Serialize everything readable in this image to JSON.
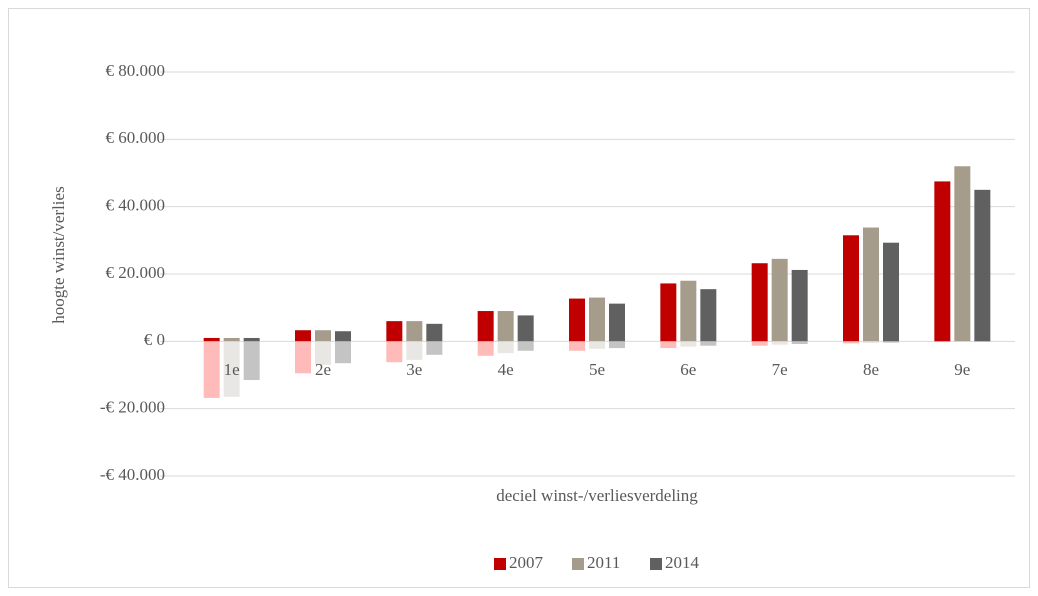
{
  "chart_data": {
    "type": "bar",
    "y_axis_label": "hoogte winst/verlies",
    "x_axis_label": "deciel winst-/verliesverdeling",
    "categories": [
      "1e",
      "2e",
      "3e",
      "4e",
      "5e",
      "6e",
      "7e",
      "8e",
      "9e"
    ],
    "series": [
      {
        "name": "2007",
        "color": "#c00000",
        "loss_color": "#ffbaba",
        "values": [
          1000,
          3300,
          6000,
          9000,
          12700,
          17200,
          23200,
          31500,
          47500
        ],
        "loss_values": [
          -16800,
          -9500,
          -6200,
          -4300,
          -2800,
          -2000,
          -1300,
          -600,
          -200
        ]
      },
      {
        "name": "2011",
        "color": "#a59c8c",
        "loss_color": "#e9e7e3",
        "values": [
          1000,
          3300,
          6000,
          9000,
          13000,
          18000,
          24500,
          33800,
          52000
        ],
        "loss_values": [
          -16500,
          -7000,
          -5500,
          -3500,
          -2200,
          -1600,
          -1000,
          -500,
          -200
        ]
      },
      {
        "name": "2014",
        "color": "#606060",
        "loss_color": "#c4c4c4",
        "values": [
          1000,
          3000,
          5200,
          7700,
          11200,
          15500,
          21200,
          29300,
          45000
        ],
        "loss_values": [
          -11500,
          -6500,
          -4000,
          -2800,
          -2000,
          -1300,
          -800,
          -400,
          -100
        ]
      }
    ],
    "ylim": [
      -40000,
      80000
    ],
    "yticks": [
      {
        "value": -40000,
        "label": "-€ 40.000"
      },
      {
        "value": -20000,
        "label": "-€ 20.000"
      },
      {
        "value": 0,
        "label": "€ 0"
      },
      {
        "value": 20000,
        "label": "€ 20.000"
      },
      {
        "value": 40000,
        "label": "€ 40.000"
      },
      {
        "value": 60000,
        "label": "€ 60.000"
      },
      {
        "value": 80000,
        "label": "€ 80.000"
      }
    ],
    "grid": true,
    "legend": "bottom"
  }
}
